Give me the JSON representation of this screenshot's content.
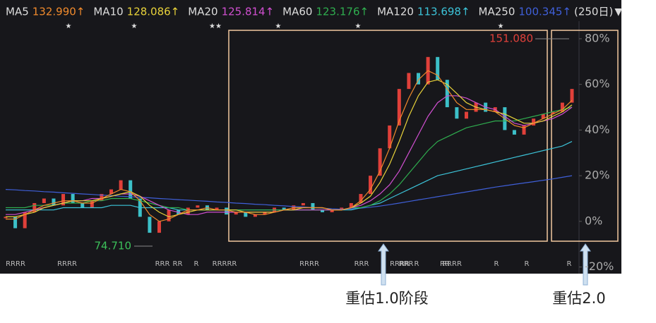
{
  "chart_data": {
    "type": "line",
    "categories": [
      null,
      null,
      null,
      null,
      null,
      null,
      null,
      null,
      null,
      null,
      null,
      null,
      null,
      null,
      null,
      null,
      null,
      null,
      null,
      null,
      null,
      null,
      null,
      null,
      null,
      null,
      null,
      null,
      null,
      null,
      null,
      null,
      null,
      null,
      null,
      null,
      null,
      null,
      null,
      null,
      null,
      null,
      null,
      null,
      null,
      null,
      null,
      null,
      null,
      null,
      null,
      null,
      null,
      null,
      null,
      null,
      null,
      null,
      null,
      null
    ],
    "ylim": [
      -22.9,
      87.7
    ],
    "yticks": [
      {
        "value": 80,
        "label": "80%"
      },
      {
        "value": 60,
        "label": "60%"
      },
      {
        "value": 40,
        "label": "40%"
      },
      {
        "value": 20,
        "label": "20%"
      },
      {
        "value": 0,
        "label": "0%"
      },
      {
        "value": -20,
        "label": "-20%"
      }
    ],
    "price": {
      "color": "#e8e8e8",
      "values": [
        2,
        -3,
        4,
        8,
        10,
        7,
        12,
        8,
        6,
        9,
        12,
        14,
        18,
        10,
        2,
        -5,
        0,
        5,
        3,
        6,
        7,
        5,
        6,
        3,
        4,
        2,
        3,
        4,
        6,
        5,
        7,
        8,
        5,
        4,
        5,
        6,
        8,
        12,
        20,
        32,
        42,
        58,
        65,
        60,
        72,
        62,
        50,
        45,
        48,
        52,
        48,
        50,
        40,
        38,
        42,
        45,
        47,
        48,
        52,
        58
      ]
    },
    "series": [
      {
        "name": "MA5",
        "legend_value": "132.990↑",
        "color": "#f08a2c",
        "values": [
          1,
          1,
          3,
          5,
          7,
          8,
          9,
          9,
          8,
          8,
          10,
          12,
          14,
          13,
          9,
          3,
          0,
          1,
          3,
          5,
          5,
          6,
          5,
          5,
          4,
          4,
          3,
          3,
          4,
          5,
          6,
          6,
          6,
          6,
          5,
          5,
          6,
          9,
          14,
          22,
          32,
          44,
          54,
          62,
          66,
          64,
          58,
          52,
          49,
          49,
          49,
          48,
          45,
          42,
          41,
          43,
          45,
          47,
          49,
          53
        ]
      },
      {
        "name": "MA10",
        "legend_value": "128.086↑",
        "color": "#e8d23a",
        "values": [
          2,
          2,
          3,
          4,
          6,
          7,
          8,
          9,
          9,
          9,
          10,
          11,
          12,
          13,
          11,
          7,
          4,
          2,
          3,
          4,
          5,
          5,
          5,
          5,
          5,
          4,
          4,
          4,
          4,
          5,
          5,
          6,
          6,
          6,
          5,
          5,
          6,
          8,
          11,
          17,
          25,
          35,
          46,
          55,
          61,
          62,
          60,
          56,
          52,
          50,
          49,
          48,
          47,
          45,
          43,
          43,
          44,
          46,
          48,
          51
        ]
      },
      {
        "name": "MA20",
        "legend_value": "125.814↑",
        "color": "#d04fd0",
        "values": [
          3,
          3,
          4,
          5,
          6,
          7,
          8,
          9,
          9,
          10,
          10,
          11,
          12,
          12,
          11,
          9,
          7,
          5,
          4,
          3,
          3,
          4,
          4,
          4,
          4,
          4,
          4,
          4,
          4,
          5,
          5,
          5,
          5,
          5,
          5,
          5,
          6,
          7,
          9,
          12,
          16,
          22,
          30,
          38,
          46,
          52,
          55,
          55,
          54,
          52,
          50,
          49,
          46,
          43,
          42,
          43,
          44,
          45,
          47,
          50
        ]
      },
      {
        "name": "MA60",
        "legend_value": "123.176↑",
        "color": "#2fae4f",
        "values": [
          6,
          6,
          6,
          7,
          7,
          7,
          8,
          8,
          8,
          9,
          9,
          10,
          10,
          10,
          9,
          8,
          7,
          6,
          6,
          5,
          5,
          5,
          5,
          5,
          5,
          5,
          5,
          5,
          5,
          5,
          5,
          5,
          5,
          5,
          5,
          5,
          6,
          6,
          7,
          9,
          12,
          16,
          21,
          26,
          31,
          35,
          37,
          39,
          41,
          42,
          43,
          44,
          44,
          44,
          45,
          46,
          47,
          48,
          49,
          50
        ]
      },
      {
        "name": "MA120",
        "legend_value": "113.698↑",
        "color": "#3cc3d8",
        "values": [
          5,
          5,
          5,
          5,
          5,
          5,
          6,
          6,
          6,
          6,
          6,
          7,
          7,
          7,
          6,
          6,
          6,
          6,
          5,
          5,
          5,
          5,
          5,
          5,
          5,
          5,
          5,
          5,
          5,
          5,
          5,
          5,
          5,
          5,
          5,
          5,
          5,
          6,
          7,
          8,
          10,
          12,
          14,
          16,
          18,
          20,
          21,
          22,
          23,
          24,
          25,
          26,
          27,
          28,
          29,
          30,
          31,
          32,
          33,
          35
        ]
      },
      {
        "name": "MA250",
        "legend_value": "100.345↑",
        "color": "#3f5fd8",
        "values": [
          14,
          13.8,
          13.5,
          13.3,
          13,
          12.8,
          12.5,
          12.3,
          12,
          11.8,
          11.5,
          11.3,
          11,
          10.8,
          10.5,
          10.3,
          10,
          9.8,
          9.5,
          9.3,
          9,
          8.8,
          8.5,
          8.3,
          8,
          7.8,
          7.5,
          7.3,
          7,
          6.8,
          6.5,
          6.3,
          6,
          5.8,
          5.5,
          5.3,
          5.5,
          5.8,
          6.2,
          6.7,
          7.3,
          8,
          8.7,
          9.4,
          10.1,
          10.8,
          11.5,
          12.2,
          12.9,
          13.6,
          14.3,
          15,
          15.6,
          16.2,
          16.8,
          17.4,
          18,
          18.6,
          19.3,
          20
        ]
      }
    ],
    "period_label": "(250日)",
    "dropdown": "▼",
    "stars": [
      "★",
      "★",
      "★★",
      "★",
      "★",
      "★"
    ],
    "markers": [
      "RRRR",
      "RRRR",
      "RRR",
      "R",
      "RRRRR",
      "RRRR",
      "RRR",
      "R",
      "RR",
      "RRRR",
      "R",
      "R",
      "RRRR",
      "RRR",
      "R",
      "R",
      "R"
    ],
    "annotations": {
      "high": "151.080",
      "low": "74.710",
      "stage1": "重估1.0阶段",
      "stage2": "重估2.0"
    }
  }
}
